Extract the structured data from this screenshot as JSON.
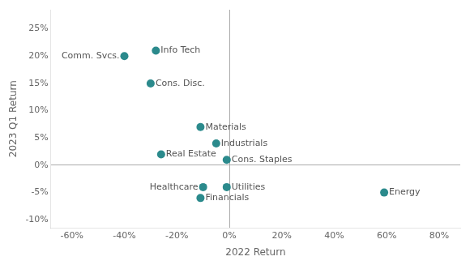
{
  "chart_data": {
    "type": "scatter",
    "xlabel": "2022 Return",
    "ylabel": "2023 Q1 Return",
    "labels": [
      "Info Tech",
      "Comm. Svcs.",
      "Cons. Disc.",
      "Materials",
      "Industrials",
      "Real Estate",
      "Cons. Staples",
      "Utilities",
      "Healthcare",
      "Financials",
      "Energy"
    ],
    "x": [
      -28,
      -40,
      -30,
      -11,
      -5,
      -26,
      -1,
      -1,
      -10,
      -11,
      59
    ],
    "values": [
      21,
      20,
      15,
      7,
      4,
      2,
      1,
      -4,
      -4,
      -6,
      -5
    ],
    "color": "#2b8a8c",
    "xlim": [
      -68,
      88
    ],
    "ylim": [
      -11.5,
      28.5
    ],
    "xticks": [
      {
        "value": -60,
        "label": "-60%"
      },
      {
        "value": -40,
        "label": "-40%"
      },
      {
        "value": -20,
        "label": "-20%"
      },
      {
        "value": 0,
        "label": "0%"
      },
      {
        "value": 20,
        "label": "20%"
      },
      {
        "value": 40,
        "label": "40%"
      },
      {
        "value": 60,
        "label": "60%"
      },
      {
        "value": 80,
        "label": "80%"
      }
    ],
    "yticks": [
      {
        "value": -10,
        "label": "-10%"
      },
      {
        "value": -5,
        "label": "-5%"
      },
      {
        "value": 0,
        "label": "0%"
      },
      {
        "value": 5,
        "label": "5%"
      },
      {
        "value": 10,
        "label": "10%"
      },
      {
        "value": 15,
        "label": "15%"
      },
      {
        "value": 20,
        "label": "20%"
      },
      {
        "value": 25,
        "label": "25%"
      }
    ],
    "grid": false
  }
}
